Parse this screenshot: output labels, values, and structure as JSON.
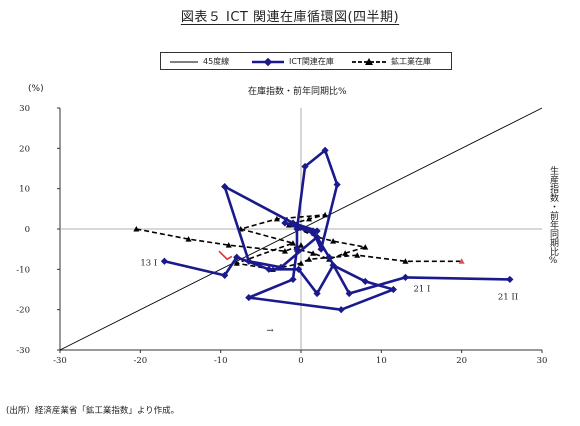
{
  "page": {
    "title": "図表５ ICT 関連在庫循環図(四半期)",
    "source": "(出所）経済産業省「鉱工業指数」より作成。"
  },
  "legend": {
    "items": [
      {
        "label": "45度線",
        "style": "solid-thin",
        "color": "#000000"
      },
      {
        "label": "ICT関連在庫",
        "style": "thick-diamond",
        "color": "#1a1a8c"
      },
      {
        "label": "鉱工業在庫",
        "style": "dashed-triangle",
        "color": "#000000"
      }
    ]
  },
  "chart_data": {
    "type": "scatter",
    "title": "",
    "xlabel": "生産指数・前年同期比%",
    "ylabel": "在庫指数・前年同期比%",
    "unit_label": "(%)",
    "xlim": [
      -30,
      30
    ],
    "ylim": [
      -30,
      30
    ],
    "x_ticks": [
      -30,
      -20,
      -10,
      0,
      10,
      20,
      30
    ],
    "y_ticks": [
      -30,
      -20,
      -10,
      0,
      10,
      20,
      30
    ],
    "reference_line": {
      "name": "45度線",
      "slope": 1,
      "intercept": 0
    },
    "colors": {
      "ict": "#1a1a8c",
      "mining": "#000000",
      "start_marker": "#e03030",
      "end_marker": "#e05050"
    },
    "series": [
      {
        "name": "ICT関連在庫",
        "style": "line-diamond",
        "points": [
          [
            -17,
            -8
          ],
          [
            -9.5,
            -11.5
          ],
          [
            -8,
            -7
          ],
          [
            -4,
            -10
          ],
          [
            -0.3,
            -10
          ],
          [
            2,
            -16
          ],
          [
            4,
            -9
          ],
          [
            8,
            -13
          ],
          [
            11.5,
            -15
          ],
          [
            5,
            -20
          ],
          [
            -6.5,
            -17
          ],
          [
            -1,
            -12.5
          ],
          [
            -0.5,
            -5
          ],
          [
            -0.5,
            0
          ],
          [
            0.5,
            15.5
          ],
          [
            3,
            19.5
          ],
          [
            4.5,
            11
          ],
          [
            2.5,
            -5
          ],
          [
            1.5,
            -0.5
          ],
          [
            -2,
            1.5
          ],
          [
            1.5,
            -1
          ],
          [
            2,
            -0.5
          ],
          [
            -1,
            1.5
          ],
          [
            -9.5,
            10.5
          ],
          [
            -6.5,
            -8
          ],
          [
            -2.5,
            -9.5
          ],
          [
            2,
            -2
          ],
          [
            3.5,
            -7
          ],
          [
            6,
            -16
          ],
          [
            13,
            -12
          ],
          [
            26,
            -12.5
          ]
        ]
      },
      {
        "name": "鉱工業在庫",
        "style": "dashed-triangle",
        "points": [
          [
            -20.5,
            0
          ],
          [
            -14,
            -2.5
          ],
          [
            -9,
            -4
          ],
          [
            -2,
            -5.5
          ],
          [
            0,
            -4
          ],
          [
            -0.5,
            -5
          ],
          [
            1.5,
            -6
          ],
          [
            3.5,
            -7.5
          ],
          [
            5.5,
            -6
          ],
          [
            8,
            -4.5
          ],
          [
            4,
            -3
          ],
          [
            2,
            -2
          ],
          [
            -1.5,
            1
          ],
          [
            1,
            2.5
          ],
          [
            3,
            3.5
          ],
          [
            -3,
            2.5
          ],
          [
            -7.5,
            0
          ],
          [
            -1,
            -3.5
          ],
          [
            -8,
            -8.5
          ],
          [
            -3.5,
            -10
          ],
          [
            0,
            -8.5
          ],
          [
            1,
            -7.5
          ],
          [
            7,
            -6.5
          ],
          [
            13,
            -8
          ],
          [
            20,
            -8
          ]
        ]
      }
    ],
    "annotations": [
      {
        "text": "13 I",
        "x": -20,
        "y": -9
      },
      {
        "text": "21 I",
        "x": 14,
        "y": -15.5
      },
      {
        "text": "21 II",
        "x": 24.5,
        "y": -17.5
      },
      {
        "text": "→",
        "x": -4.3,
        "y": -25.8
      }
    ]
  }
}
